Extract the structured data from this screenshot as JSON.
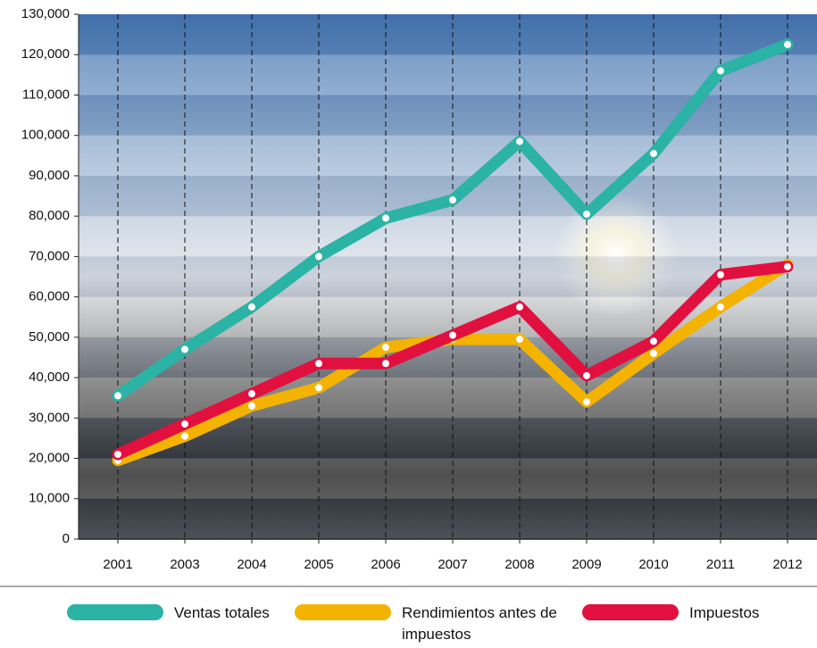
{
  "chart_data": {
    "type": "line",
    "categories": [
      "2001",
      "2003",
      "2004",
      "2005",
      "2006",
      "2007",
      "2008",
      "2009",
      "2010",
      "2011",
      "2012"
    ],
    "series": [
      {
        "name": "Ventas totales",
        "color": "#2bb3a5",
        "values": [
          35500,
          47000,
          57500,
          70000,
          79500,
          84000,
          98500,
          80500,
          95500,
          116000,
          122500
        ]
      },
      {
        "name": "Rendimientos antes de impuestos",
        "color": "#f4b300",
        "values": [
          19500,
          25500,
          33000,
          37500,
          47500,
          49500,
          49500,
          34000,
          46000,
          57500,
          68000
        ]
      },
      {
        "name": "Impuestos",
        "color": "#e2103f",
        "values": [
          21000,
          28500,
          36000,
          43500,
          43500,
          50500,
          57500,
          40500,
          49000,
          65500,
          67500
        ]
      }
    ],
    "ylim": [
      0,
      130000
    ],
    "yticks": [
      0,
      {
        "value": 10000,
        "label": "10,000"
      },
      {
        "value": 20000,
        "label": "20,000"
      },
      {
        "value": 30000,
        "label": "30,000"
      },
      {
        "value": 40000,
        "label": "40,000"
      },
      {
        "value": 50000,
        "label": "50,000"
      },
      {
        "value": 60000,
        "label": "60,000"
      },
      {
        "value": 70000,
        "label": "70,000"
      },
      {
        "value": 80000,
        "label": "80,000"
      },
      {
        "value": 90000,
        "label": "90,000"
      },
      {
        "value": 100000,
        "label": "100,000"
      },
      {
        "value": 110000,
        "label": "110,000"
      },
      {
        "value": 120000,
        "label": "120,000"
      },
      {
        "value": 130000,
        "label": "130,000"
      }
    ],
    "grid": true
  }
}
